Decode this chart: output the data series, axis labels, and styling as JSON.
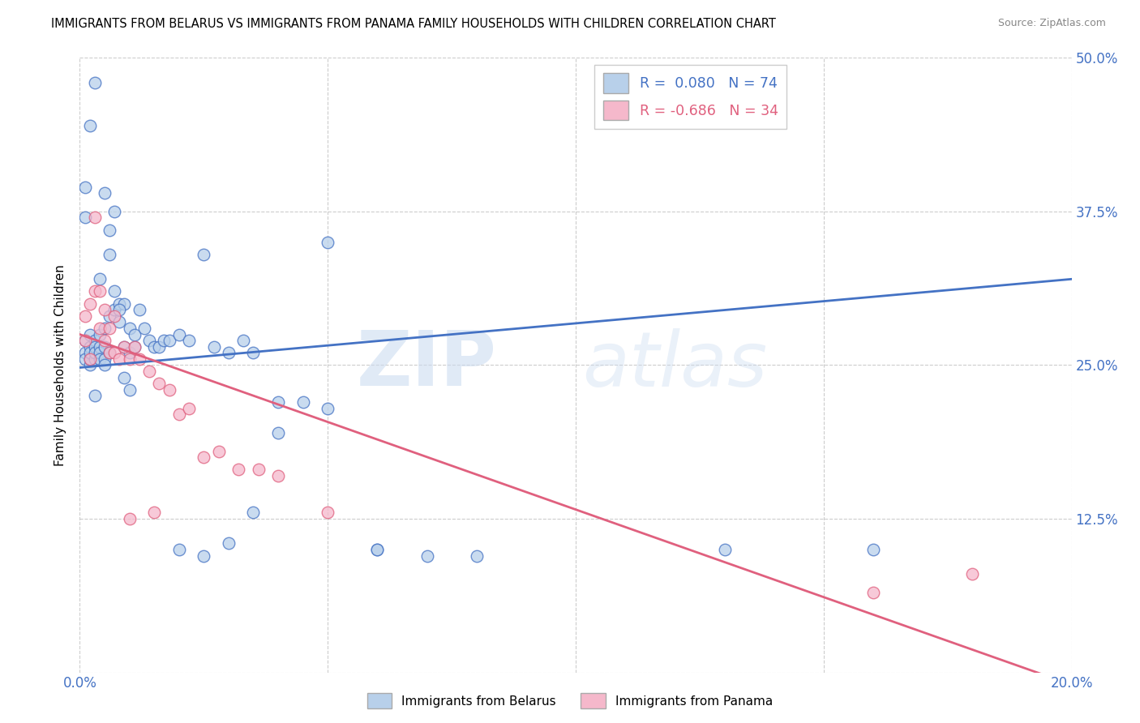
{
  "title": "IMMIGRANTS FROM BELARUS VS IMMIGRANTS FROM PANAMA FAMILY HOUSEHOLDS WITH CHILDREN CORRELATION CHART",
  "source": "Source: ZipAtlas.com",
  "ylabel": "Family Households with Children",
  "legend_label1": "Immigrants from Belarus",
  "legend_label2": "Immigrants from Panama",
  "r1": 0.08,
  "n1": 74,
  "r2": -0.686,
  "n2": 34,
  "color1": "#b8d0ea",
  "color2": "#f5b8cb",
  "line_color1": "#4472c4",
  "line_color2": "#e0607e",
  "watermark_zip": "ZIP",
  "watermark_atlas": "atlas",
  "xlim": [
    0.0,
    0.2
  ],
  "ylim": [
    0.0,
    0.5
  ],
  "xtick_vals": [
    0.0,
    0.05,
    0.1,
    0.15,
    0.2
  ],
  "ytick_vals": [
    0.0,
    0.125,
    0.25,
    0.375,
    0.5
  ],
  "belarus_x": [
    0.001,
    0.001,
    0.001,
    0.002,
    0.002,
    0.002,
    0.002,
    0.002,
    0.003,
    0.003,
    0.003,
    0.003,
    0.004,
    0.004,
    0.004,
    0.004,
    0.005,
    0.005,
    0.005,
    0.005,
    0.006,
    0.006,
    0.006,
    0.007,
    0.007,
    0.007,
    0.008,
    0.008,
    0.009,
    0.009,
    0.01,
    0.01,
    0.011,
    0.011,
    0.012,
    0.013,
    0.014,
    0.015,
    0.016,
    0.017,
    0.018,
    0.02,
    0.022,
    0.025,
    0.027,
    0.03,
    0.033,
    0.035,
    0.04,
    0.045,
    0.05,
    0.06,
    0.07,
    0.08,
    0.05,
    0.025,
    0.02,
    0.03,
    0.035,
    0.06,
    0.13,
    0.16,
    0.04,
    0.003,
    0.002,
    0.001,
    0.001,
    0.005,
    0.008,
    0.004,
    0.006,
    0.009,
    0.01,
    0.003
  ],
  "belarus_y": [
    0.27,
    0.26,
    0.255,
    0.275,
    0.265,
    0.25,
    0.255,
    0.26,
    0.27,
    0.265,
    0.255,
    0.26,
    0.275,
    0.265,
    0.26,
    0.255,
    0.28,
    0.265,
    0.255,
    0.25,
    0.29,
    0.36,
    0.34,
    0.375,
    0.31,
    0.295,
    0.3,
    0.285,
    0.3,
    0.265,
    0.28,
    0.26,
    0.275,
    0.265,
    0.295,
    0.28,
    0.27,
    0.265,
    0.265,
    0.27,
    0.27,
    0.275,
    0.27,
    0.34,
    0.265,
    0.26,
    0.27,
    0.26,
    0.22,
    0.22,
    0.215,
    0.1,
    0.095,
    0.095,
    0.35,
    0.095,
    0.1,
    0.105,
    0.13,
    0.1,
    0.1,
    0.1,
    0.195,
    0.48,
    0.445,
    0.395,
    0.37,
    0.39,
    0.295,
    0.32,
    0.26,
    0.24,
    0.23,
    0.225
  ],
  "panama_x": [
    0.001,
    0.001,
    0.002,
    0.002,
    0.003,
    0.003,
    0.004,
    0.004,
    0.005,
    0.005,
    0.006,
    0.006,
    0.007,
    0.007,
    0.008,
    0.009,
    0.01,
    0.011,
    0.012,
    0.014,
    0.016,
    0.018,
    0.02,
    0.022,
    0.025,
    0.028,
    0.032,
    0.036,
    0.04,
    0.05,
    0.16,
    0.18,
    0.01,
    0.015
  ],
  "panama_y": [
    0.29,
    0.27,
    0.3,
    0.255,
    0.37,
    0.31,
    0.31,
    0.28,
    0.295,
    0.27,
    0.26,
    0.28,
    0.29,
    0.26,
    0.255,
    0.265,
    0.255,
    0.265,
    0.255,
    0.245,
    0.235,
    0.23,
    0.21,
    0.215,
    0.175,
    0.18,
    0.165,
    0.165,
    0.16,
    0.13,
    0.065,
    0.08,
    0.125,
    0.13
  ],
  "line1_x0": 0.0,
  "line1_x1": 0.2,
  "line1_y0": 0.248,
  "line1_y1": 0.32,
  "line2_x0": 0.0,
  "line2_x1": 0.2,
  "line2_y0": 0.275,
  "line2_y1": -0.01
}
